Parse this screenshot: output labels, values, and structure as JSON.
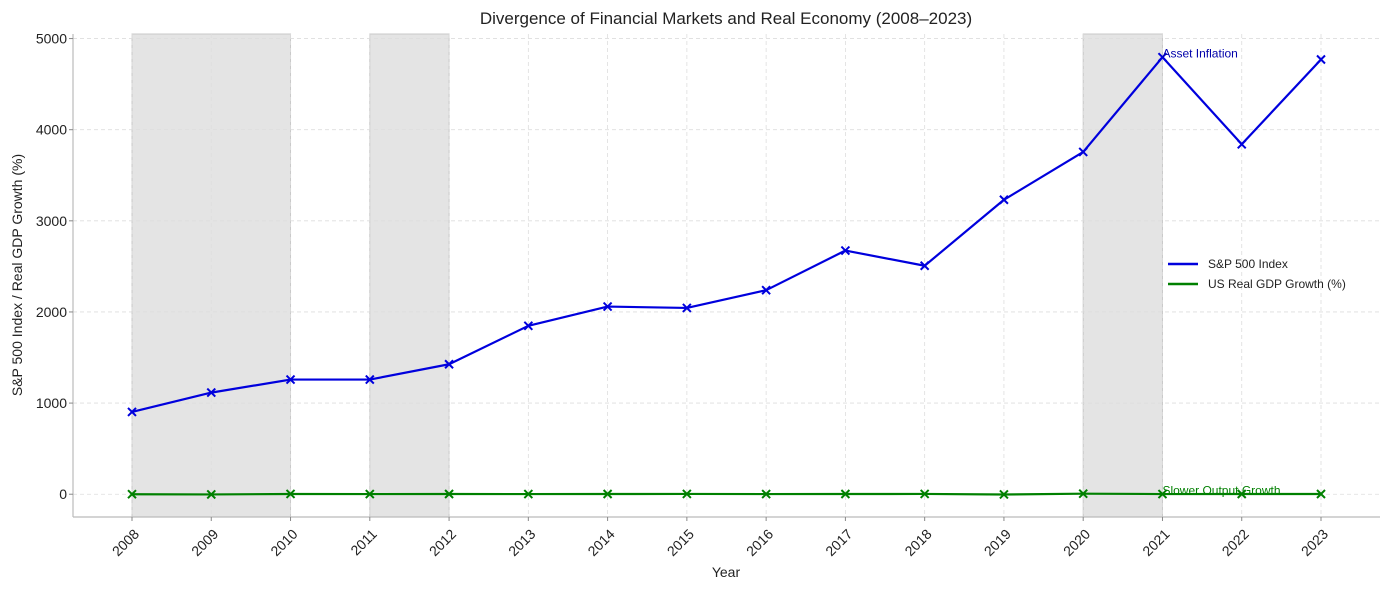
{
  "chart_data": {
    "type": "line",
    "title": "Divergence of Financial Markets and Real Economy (2008–2023)",
    "xlabel": "Year",
    "ylabel": "S&P 500 Index / Real GDP Growth (%)",
    "ylim": [
      -250,
      5050
    ],
    "yticks": [
      0,
      1000,
      2000,
      3000,
      4000,
      5000
    ],
    "x": [
      2008,
      2009,
      2010,
      2011,
      2012,
      2013,
      2014,
      2015,
      2016,
      2017,
      2018,
      2019,
      2020,
      2021,
      2022,
      2023
    ],
    "x_tick_labels": [
      "2008",
      "2009",
      "2010",
      "2011",
      "2012",
      "2013",
      "2014",
      "2015",
      "2016",
      "2017",
      "2018",
      "2019",
      "2020",
      "2021",
      "2022",
      "2023"
    ],
    "y_tick_labels": [
      "0",
      "1000",
      "2000",
      "3000",
      "4000",
      "5000"
    ],
    "grid": true,
    "legend_position": "center-right",
    "shaded_periods": [
      [
        2008,
        2010
      ],
      [
        2011,
        2012
      ],
      [
        2020,
        2021
      ]
    ],
    "series": [
      {
        "name": "S&P 500 Index",
        "color": "#0000dd",
        "marker": "x",
        "values": [
          903,
          1115,
          1258,
          1258,
          1426,
          1848,
          2059,
          2044,
          2239,
          2674,
          2507,
          3231,
          3756,
          4796,
          3840,
          4770
        ]
      },
      {
        "name": "US Real GDP Growth (%)",
        "color": "#008000",
        "marker": "x",
        "values": [
          -0.1,
          -2.6,
          2.7,
          1.6,
          2.2,
          1.8,
          2.5,
          2.9,
          1.8,
          2.5,
          2.9,
          -2.8,
          5.9,
          1.9,
          2.5,
          2.5
        ]
      }
    ],
    "annotations": [
      {
        "text": "Asset Inflation",
        "x": 2021,
        "y": 4796,
        "color": "#0000aa"
      },
      {
        "text": "Slower Output Growth",
        "x": 2021,
        "y": 0,
        "color": "#008000"
      }
    ]
  }
}
